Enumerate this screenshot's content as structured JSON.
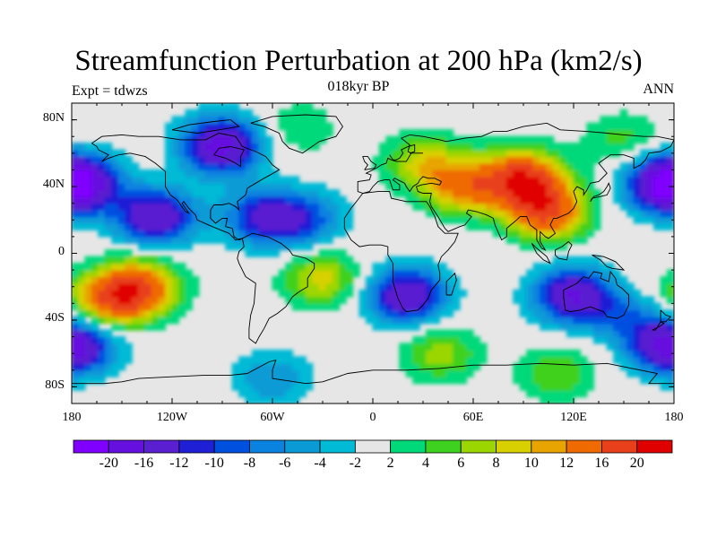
{
  "title": "Streamfunction Perturbation at 200 hPa (km2/s)",
  "subtitle": "018kyr BP",
  "left_string": "Expt = tdwzs",
  "right_string": "ANN",
  "map": {
    "projection": "cylindrical-equidistant",
    "lon_range": [
      -180,
      180
    ],
    "lat_range": [
      -90,
      90
    ],
    "lat_ticks": [
      {
        "value": 80,
        "label": "80N"
      },
      {
        "value": 40,
        "label": "40N"
      },
      {
        "value": 0,
        "label": "0"
      },
      {
        "value": -40,
        "label": "40S"
      },
      {
        "value": -80,
        "label": "80S"
      }
    ],
    "lon_ticks": [
      {
        "value": -180,
        "label": "180"
      },
      {
        "value": -120,
        "label": "120W"
      },
      {
        "value": -60,
        "label": "60W"
      },
      {
        "value": 0,
        "label": "0"
      },
      {
        "value": 60,
        "label": "60E"
      },
      {
        "value": 120,
        "label": "120E"
      },
      {
        "value": 180,
        "label": "180"
      }
    ],
    "background_color": "#e6e6e6",
    "coast_color": "#000000"
  },
  "colorbar": {
    "labels": [
      "-20",
      "-16",
      "-12",
      "-10",
      "-8",
      "-6",
      "-4",
      "-2",
      "2",
      "4",
      "6",
      "8",
      "10",
      "12",
      "16",
      "20"
    ],
    "levels": [
      -20,
      -16,
      -12,
      -10,
      -8,
      -6,
      -4,
      -2,
      2,
      4,
      6,
      8,
      10,
      12,
      16,
      20
    ],
    "colors": [
      "#7f00ff",
      "#6610e0",
      "#5a1fd0",
      "#1f1fd6",
      "#0050e0",
      "#0a82e0",
      "#0a9bd6",
      "#00bad6",
      "#e6e6e6",
      "#00d97a",
      "#3fd11f",
      "#9cd600",
      "#d8d000",
      "#e8a400",
      "#ef6a00",
      "#e8401a",
      "#e00000"
    ]
  },
  "field": {
    "units": "km2/s",
    "centers": [
      {
        "lon": -90,
        "lat": 65,
        "value": -18
      },
      {
        "lon": -175,
        "lat": 42,
        "value": -14
      },
      {
        "lon": 175,
        "lat": 42,
        "value": -14
      },
      {
        "lon": -130,
        "lat": 22,
        "value": -16
      },
      {
        "lon": -65,
        "lat": 22,
        "value": -12
      },
      {
        "lon": -40,
        "lat": 20,
        "value": -8
      },
      {
        "lon": 90,
        "lat": 45,
        "value": 18
      },
      {
        "lon": 105,
        "lat": 25,
        "value": 16
      },
      {
        "lon": 55,
        "lat": 40,
        "value": 12
      },
      {
        "lon": 30,
        "lat": 55,
        "value": 8
      },
      {
        "lon": 150,
        "lat": 68,
        "value": 5
      },
      {
        "lon": -140,
        "lat": -20,
        "value": 16
      },
      {
        "lon": -160,
        "lat": -30,
        "value": 12
      },
      {
        "lon": -30,
        "lat": -15,
        "value": 9
      },
      {
        "lon": -45,
        "lat": 75,
        "value": 4
      },
      {
        "lon": 20,
        "lat": -25,
        "value": -16
      },
      {
        "lon": 120,
        "lat": -25,
        "value": -16
      },
      {
        "lon": 155,
        "lat": -35,
        "value": -10
      },
      {
        "lon": -175,
        "lat": -55,
        "value": -10
      },
      {
        "lon": 175,
        "lat": -55,
        "value": -10
      },
      {
        "lon": 40,
        "lat": -60,
        "value": 7
      },
      {
        "lon": 110,
        "lat": -72,
        "value": 6
      },
      {
        "lon": -60,
        "lat": -75,
        "value": -6
      },
      {
        "lon": 160,
        "lat": -30,
        "value": 5
      }
    ]
  }
}
